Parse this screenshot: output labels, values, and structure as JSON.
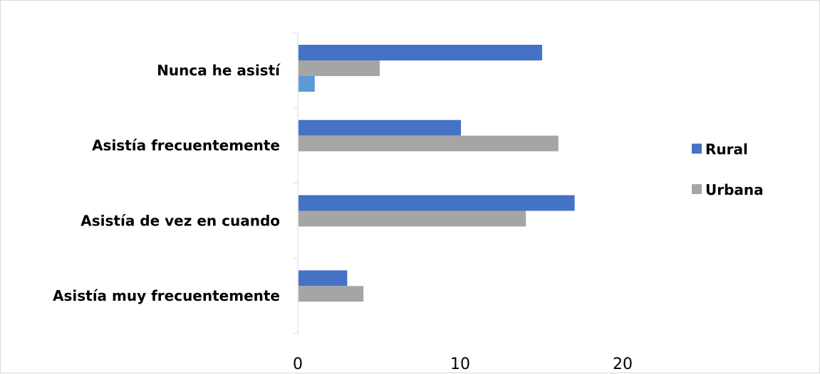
{
  "chart_data": {
    "type": "bar",
    "orientation": "horizontal",
    "categories": [
      "Nunca he asistí",
      "Asistía frecuentemente",
      "Asistía de vez en cuando",
      "Asistía muy frecuentemente"
    ],
    "series": [
      {
        "name": "Rural",
        "color": "#4472c4",
        "values": [
          15,
          10,
          17,
          3
        ]
      },
      {
        "name": "Urbana",
        "color": "#a5a5a5",
        "values": [
          5,
          16,
          14,
          4
        ]
      },
      {
        "name": "",
        "color": "#5b9bd5",
        "values": [
          1,
          null,
          null,
          null
        ]
      }
    ],
    "xticks": [
      0,
      10,
      20
    ],
    "xlim": [
      0,
      30
    ],
    "title": "",
    "xlabel": "",
    "ylabel": "",
    "legend_position": "right",
    "grid": false
  }
}
